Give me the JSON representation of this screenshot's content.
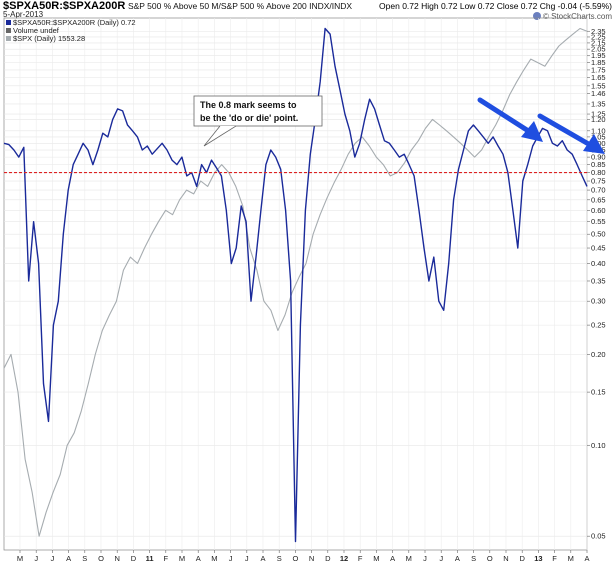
{
  "header": {
    "symbol": "$SPXA50R:$SPXA200R",
    "description": "S&P 500 % Above 50 M/S&P 500 % Above 200 INDX/INDX",
    "date": "5-Apr-2013",
    "ohlc": "Open 0.72  High 0.72  Low 0.72  Close 0.72  Chg -0.04 (-5.59%)",
    "brand": "© StockCharts.com"
  },
  "legend": {
    "item1": "$SPXA50R:$SPXA200R (Daily) 0.72",
    "item2": "Volume undef",
    "item3": "$SPX (Daily) 1553.28"
  },
  "annotation": {
    "line1": "The 0.8 mark seems to",
    "line2": "be the 'do or die' point."
  },
  "chart_data": {
    "type": "line",
    "y_scale": "log",
    "ylim": [
      0.045,
      2.6
    ],
    "y_ticks": [
      0.05,
      0.1,
      0.15,
      0.2,
      0.25,
      0.3,
      0.35,
      0.4,
      0.45,
      0.5,
      0.55,
      0.6,
      0.65,
      0.7,
      0.75,
      0.8,
      0.85,
      0.9,
      0.95,
      1.0,
      1.05,
      1.1,
      1.2,
      1.25,
      1.35,
      1.46,
      1.55,
      1.65,
      1.75,
      1.85,
      1.95,
      2.05,
      2.15,
      2.25,
      2.35
    ],
    "x_ticks": [
      "M",
      "J",
      "J",
      "A",
      "S",
      "O",
      "N",
      "D",
      "11",
      "F",
      "M",
      "A",
      "M",
      "J",
      "J",
      "A",
      "S",
      "O",
      "N",
      "D",
      "12",
      "F",
      "M",
      "A",
      "M",
      "J",
      "J",
      "A",
      "S",
      "O",
      "N",
      "D",
      "13",
      "F",
      "M",
      "A"
    ],
    "bold_x_ticks": [
      "11",
      "12",
      "13"
    ],
    "reference_line": {
      "value": 0.8,
      "color": "#dd2222",
      "style": "dashed"
    },
    "series": [
      {
        "name": "$SPXA50R:$SPXA200R (Daily) 0.72",
        "color": "#1a2a9a",
        "values": [
          1.0,
          0.99,
          0.95,
          0.9,
          0.97,
          0.35,
          0.55,
          0.4,
          0.16,
          0.12,
          0.25,
          0.3,
          0.5,
          0.7,
          0.85,
          0.92,
          1.0,
          0.95,
          0.85,
          0.95,
          1.08,
          1.05,
          1.2,
          1.3,
          1.28,
          1.15,
          1.1,
          1.05,
          0.95,
          0.98,
          0.92,
          0.96,
          1.0,
          0.95,
          0.88,
          0.85,
          0.9,
          0.78,
          0.8,
          0.72,
          0.85,
          0.8,
          0.88,
          0.83,
          0.78,
          0.6,
          0.4,
          0.45,
          0.62,
          0.55,
          0.3,
          0.42,
          0.6,
          0.85,
          0.95,
          0.9,
          0.82,
          0.6,
          0.35,
          0.048,
          0.25,
          0.6,
          0.92,
          1.2,
          1.6,
          2.4,
          2.3,
          1.8,
          1.5,
          1.25,
          1.1,
          0.9,
          1.0,
          1.2,
          1.4,
          1.3,
          1.15,
          1.02,
          1.0,
          0.95,
          0.9,
          0.92,
          0.85,
          0.78,
          0.6,
          0.45,
          0.35,
          0.42,
          0.3,
          0.28,
          0.4,
          0.65,
          0.82,
          0.95,
          1.1,
          1.15,
          1.1,
          1.05,
          1.0,
          1.05,
          0.98,
          0.92,
          0.8,
          0.6,
          0.45,
          0.75,
          0.85,
          0.98,
          1.05,
          1.12,
          1.1,
          1.0,
          0.98,
          1.02,
          0.95,
          0.92,
          0.85,
          0.78,
          0.72
        ],
        "x_start": 0,
        "x_end": 1
      },
      {
        "name": "$SPX (Daily) 1553.28",
        "color": "#a6acb0",
        "values": [
          0.18,
          0.2,
          0.15,
          0.09,
          0.07,
          0.05,
          0.06,
          0.07,
          0.08,
          0.1,
          0.11,
          0.13,
          0.16,
          0.2,
          0.24,
          0.27,
          0.3,
          0.38,
          0.42,
          0.4,
          0.45,
          0.5,
          0.55,
          0.6,
          0.58,
          0.65,
          0.7,
          0.68,
          0.75,
          0.72,
          0.8,
          0.85,
          0.8,
          0.72,
          0.62,
          0.45,
          0.38,
          0.3,
          0.28,
          0.24,
          0.27,
          0.32,
          0.36,
          0.4,
          0.5,
          0.58,
          0.66,
          0.74,
          0.82,
          0.92,
          1.0,
          1.05,
          0.98,
          0.9,
          0.85,
          0.78,
          0.8,
          0.86,
          0.95,
          1.02,
          1.12,
          1.2,
          1.15,
          1.1,
          1.05,
          1.0,
          0.95,
          0.9,
          0.95,
          1.05,
          1.15,
          1.28,
          1.45,
          1.6,
          1.75,
          1.9,
          1.85,
          1.8,
          1.95,
          2.1,
          2.2,
          2.3,
          2.4,
          2.35
        ],
        "x_start": 0,
        "x_end": 1
      }
    ]
  }
}
